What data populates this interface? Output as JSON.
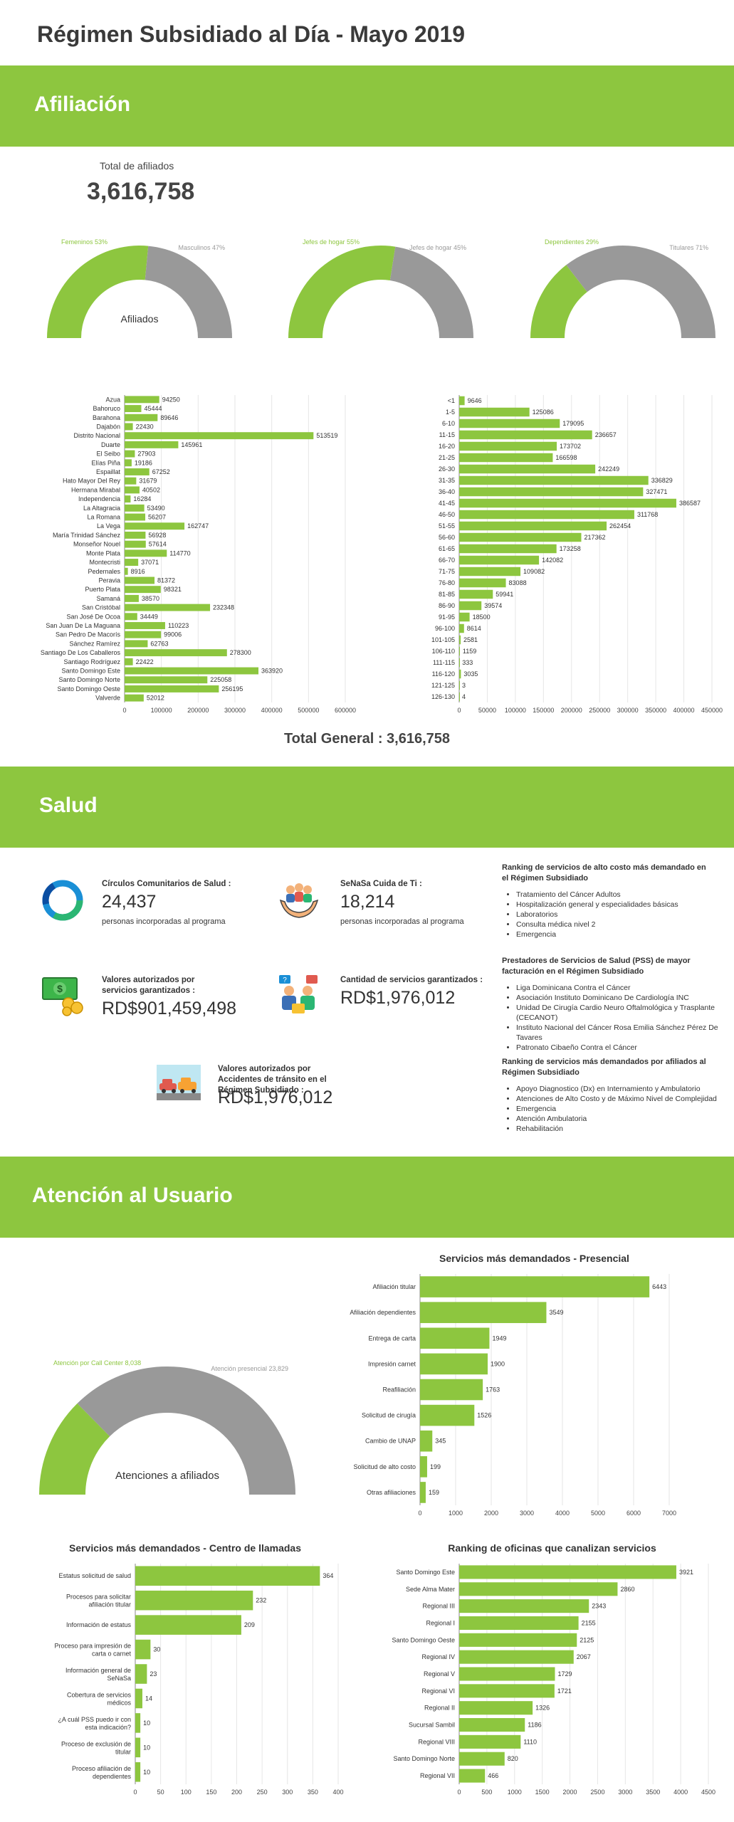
{
  "page_title": "Régimen Subsidiado al Día - Mayo 2019",
  "colors": {
    "green": "#8dc63f",
    "gray": "#999999"
  },
  "sections": {
    "afiliacion": "Afiliación",
    "salud": "Salud",
    "atencion": "Atención al Usuario"
  },
  "afiliacion": {
    "total_label": "Total de afiliados",
    "total_value": "3,616,758",
    "total_general": "Total General : 3,616,758",
    "gauges": [
      {
        "left_label": "Femeninos 53%",
        "right_label": "Masculinos 47%",
        "green_fraction": 0.53,
        "center_label": "Afiliados"
      },
      {
        "left_label": "Jefes de hogar 55%",
        "right_label": "Jefes de hogar 45%",
        "green_fraction": 0.55,
        "center_label": ""
      },
      {
        "left_label": "Dependientes 29%",
        "right_label": "Titulares 71%",
        "green_fraction": 0.29,
        "center_label": ""
      }
    ]
  },
  "salud": {
    "kpis": [
      {
        "icon": "circle-ring-icon",
        "label": "Círculos Comunitarios de Salud :",
        "value": "24,437",
        "sub": "personas incorporadas al programa"
      },
      {
        "icon": "caring-hands-people-icon",
        "label": "SeNaSa Cuida de Ti :",
        "value": "18,214",
        "sub": "personas incorporadas al programa"
      },
      {
        "icon": "money-coins-icon",
        "label": "Valores autorizados por servicios garantizados :",
        "value": "RD$901,459,498",
        "sub": ""
      },
      {
        "icon": "team-chat-icon",
        "label": "Cantidad de servicios garantizados :",
        "value": "RD$1,976,012",
        "sub": ""
      },
      {
        "icon": "car-accident-icon",
        "label": "Valores autorizados por Accidentes de tránsito en el Régimen Subsidiado :",
        "value": "RD$1,976,012",
        "sub": ""
      }
    ],
    "rankings": [
      {
        "title": "Ranking de servicios de alto costo más demandado en el Régimen Subsidiado",
        "items": [
          "Tratamiento del Cáncer Adultos",
          "Hospitalización general y especialidades básicas",
          "Laboratorios",
          "Consulta médica nivel 2",
          "Emergencia"
        ]
      },
      {
        "title": "Prestadores de Servicios de Salud (PSS) de mayor facturación en el Régimen Subsidiado",
        "items": [
          "Liga Dominicana Contra el Cáncer",
          "Asociación Instituto Dominicano De Cardiología INC",
          "Unidad De Cirugía Cardio Neuro Oftalmológica y Trasplante (CECANOT)",
          "Instituto Nacional del Cáncer Rosa Emilia Sánchez Pérez De Tavares",
          "Patronato Cibaeño Contra el Cáncer"
        ]
      },
      {
        "title": "Ranking de servicios más demandados por afiliados al Régimen Subsidiado",
        "items": [
          "Apoyo Diagnostico (Dx) en Internamiento y Ambulatorio",
          "Atenciones de Alto Costo y de Máximo Nivel de Complejidad",
          "Emergencia",
          "Atención Ambulatoria",
          "Rehabilitación"
        ]
      }
    ]
  },
  "atencion": {
    "gauge": {
      "left_label": "Atención por Call Center 8,038",
      "right_label": "Atención presencial 23,829",
      "green_fraction": 0.252,
      "center_label": "Atenciones a afiliados"
    }
  },
  "chart_data": [
    {
      "id": "provincias",
      "type": "bar",
      "orientation": "horizontal",
      "categories": [
        "Azua",
        "Bahoruco",
        "Barahona",
        "Dajabón",
        "Distrito Nacional",
        "Duarte",
        "El Seibo",
        "Elías Piña",
        "Espaillat",
        "Hato Mayor Del Rey",
        "Hermana Mirabal",
        "Independencia",
        "La Altagracia",
        "La Romana",
        "La Vega",
        "María Trinidad Sánchez",
        "Monseñor Nouel",
        "Monte Plata",
        "Montecristi",
        "Pedernales",
        "Peravia",
        "Puerto Plata",
        "Samaná",
        "San Cristóbal",
        "San José De Ocoa",
        "San Juan De La Maguana",
        "San Pedro De Macorís",
        "Sánchez Ramírez",
        "Santiago De Los Caballeros",
        "Santiago Rodríguez",
        "Santo Domingo Este",
        "Santo Domingo Norte",
        "Santo Domingo Oeste",
        "Valverde"
      ],
      "values": [
        94250,
        45444,
        89646,
        22430,
        513519,
        145961,
        27903,
        19186,
        67252,
        31679,
        40502,
        16284,
        53490,
        56207,
        162747,
        56928,
        57614,
        114770,
        37071,
        8916,
        81372,
        98321,
        38570,
        232348,
        34449,
        110223,
        99006,
        62763,
        278300,
        22422,
        363920,
        225058,
        256195,
        52012
      ],
      "xlim": [
        0,
        600000
      ],
      "ticks": [
        0,
        100000,
        200000,
        300000,
        400000,
        500000,
        600000
      ]
    },
    {
      "id": "edades",
      "type": "bar",
      "orientation": "horizontal",
      "categories": [
        "<1",
        "1-5",
        "6-10",
        "11-15",
        "16-20",
        "21-25",
        "26-30",
        "31-35",
        "36-40",
        "41-45",
        "46-50",
        "51-55",
        "56-60",
        "61-65",
        "66-70",
        "71-75",
        "76-80",
        "81-85",
        "86-90",
        "91-95",
        "96-100",
        "101-105",
        "106-110",
        "111-115",
        "116-120",
        "121-125",
        "126-130"
      ],
      "values": [
        9646,
        125086,
        179095,
        236657,
        173702,
        166598,
        242249,
        336829,
        327471,
        386587,
        311768,
        262454,
        217362,
        173258,
        142082,
        109082,
        83088,
        59941,
        39574,
        18500,
        8614,
        2581,
        1159,
        333,
        3035,
        3,
        4
      ],
      "xlim": [
        0,
        450000
      ],
      "ticks": [
        0,
        50000,
        100000,
        150000,
        200000,
        250000,
        300000,
        350000,
        400000,
        450000
      ]
    },
    {
      "id": "presencial",
      "type": "bar",
      "orientation": "horizontal",
      "title": "Servicios más demandados - Presencial",
      "categories": [
        "Afiliación titular",
        "Afiliación dependientes",
        "Entrega de carta",
        "Impresión carnet",
        "Reafiliación",
        "Solicitud de cirugía",
        "Cambio de UNAP",
        "Solicitud de alto costo",
        "Otras afiliaciones"
      ],
      "values": [
        6443,
        3549,
        1949,
        1900,
        1763,
        1526,
        345,
        199,
        159
      ],
      "xlim": [
        0,
        7000
      ],
      "ticks": [
        0,
        1000,
        2000,
        3000,
        4000,
        5000,
        6000,
        7000
      ]
    },
    {
      "id": "call_center",
      "type": "bar",
      "orientation": "horizontal",
      "title": "Servicios más demandados - Centro de llamadas",
      "categories": [
        "Estatus solicitud de salud",
        "Procesos para solicitar afiliación titular",
        "Información de estatus",
        "Proceso para impresión de carta o carnet",
        "Información general de SeNaSa",
        "Cobertura de servicios médicos",
        "¿A cuál PSS puedo ir con esta indicación?",
        "Proceso de exclusión de titular",
        "Proceso afiliación de dependientes"
      ],
      "values": [
        364,
        232,
        209,
        30,
        23,
        14,
        10,
        10,
        10
      ],
      "xlim": [
        0,
        400
      ],
      "ticks": [
        0,
        50,
        100,
        150,
        200,
        250,
        300,
        350,
        400
      ]
    },
    {
      "id": "oficinas",
      "type": "bar",
      "orientation": "horizontal",
      "title": "Ranking de oficinas que canalizan servicios",
      "categories": [
        "Santo Domingo Este",
        "Sede Alma Mater",
        "Regional III",
        "Regional I",
        "Santo Domingo Oeste",
        "Regional IV",
        "Regional V",
        "Regional VI",
        "Regional II",
        "Sucursal Sambil",
        "Regional VIII",
        "Santo Domingo Norte",
        "Regional VII"
      ],
      "values": [
        3921,
        2860,
        2343,
        2155,
        2125,
        2067,
        1729,
        1721,
        1326,
        1186,
        1110,
        820,
        466
      ],
      "xlim": [
        0,
        4500
      ],
      "ticks": [
        0,
        500,
        1000,
        1500,
        2000,
        2500,
        3000,
        3500,
        4000,
        4500
      ]
    }
  ]
}
